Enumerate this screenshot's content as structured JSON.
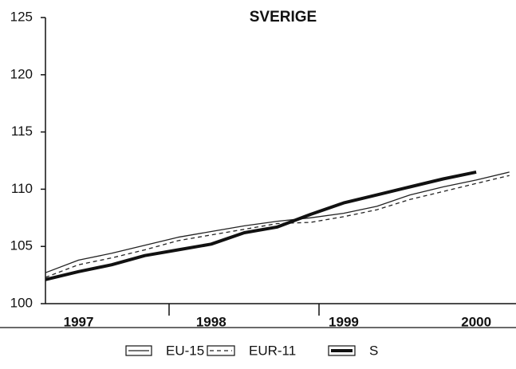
{
  "chart_data": {
    "type": "line",
    "title": "SVERIGE",
    "categories": [
      null,
      "1997",
      null,
      null,
      null,
      "1998",
      null,
      null,
      null,
      "1999",
      null,
      null,
      null,
      "2000",
      null
    ],
    "series": [
      {
        "name": "EU-15",
        "color": "#222222",
        "line_width": 1.3,
        "dash": "none",
        "values": [
          102.7,
          103.8,
          104.4,
          105.1,
          105.8,
          106.3,
          106.8,
          107.2,
          107.5,
          107.9,
          108.5,
          109.5,
          110.2,
          110.8,
          111.5
        ]
      },
      {
        "name": "EUR-11",
        "color": "#222222",
        "line_width": 1.3,
        "dash": "5 4",
        "values": [
          102.3,
          103.4,
          104.0,
          104.7,
          105.5,
          106.0,
          106.5,
          107.0,
          107.1,
          107.6,
          108.2,
          109.1,
          109.8,
          110.5,
          111.2
        ]
      },
      {
        "name": "S",
        "color": "#111111",
        "line_width": 4,
        "dash": "none",
        "values": [
          102.1,
          102.8,
          103.4,
          104.2,
          104.7,
          105.2,
          106.2,
          106.7,
          107.8,
          108.8,
          109.5,
          110.2,
          110.9,
          111.5,
          null
        ]
      }
    ],
    "ylim": [
      100,
      125
    ],
    "yticks": [
      100,
      105,
      110,
      115,
      120,
      125
    ],
    "grid": false,
    "legend": "bottom"
  }
}
